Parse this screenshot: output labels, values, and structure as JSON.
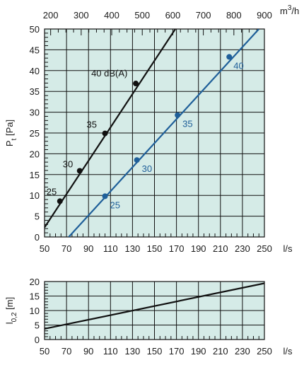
{
  "chart_data": [
    {
      "type": "line",
      "x_unit": "l/s",
      "x_ticks": [
        50,
        70,
        90,
        110,
        130,
        150,
        170,
        190,
        210,
        230,
        250
      ],
      "xlim": [
        50,
        250
      ],
      "x2_unit_base": "m",
      "x2_unit_sup": "3",
      "x2_unit_tail": "/h",
      "x2_ticks": [
        200,
        300,
        400,
        500,
        600,
        700,
        800,
        900
      ],
      "x2_per_x": 3.6,
      "ylabel_main": "P",
      "ylabel_sub": "t",
      "ylabel_tail": " [Pa]",
      "y_ticks": [
        0,
        5,
        10,
        15,
        20,
        25,
        30,
        35,
        40,
        45,
        50
      ],
      "ylim": [
        0,
        50
      ],
      "grid": true,
      "background": "#d5ebe7",
      "series": [
        {
          "color": "#111111",
          "line": {
            "x": [
              50,
              169
            ],
            "y": [
              2.3,
              50
            ]
          },
          "points": {
            "x": [
              64,
              82,
              105,
              133
            ],
            "y": [
              8.6,
              15.9,
              24.9,
              36.9
            ]
          },
          "labels": [
            "25",
            "30",
            "35",
            "40 dB(A)"
          ]
        },
        {
          "color": "#1f5f99",
          "line": {
            "x": [
              72,
              245
            ],
            "y": [
              0,
              50
            ]
          },
          "points": {
            "x": [
              105,
              134,
              171,
              218
            ],
            "y": [
              9.8,
              18.5,
              29.3,
              43.3
            ]
          },
          "labels": [
            "25",
            "30",
            "35",
            "40"
          ]
        }
      ]
    },
    {
      "type": "line",
      "x_unit": "l/s",
      "x_ticks": [
        50,
        70,
        90,
        110,
        130,
        150,
        170,
        190,
        210,
        230,
        250
      ],
      "xlim": [
        50,
        250
      ],
      "ylabel_main": "l",
      "ylabel_sub": "0,2",
      "ylabel_tail": " [m]",
      "y_ticks": [
        0,
        5,
        10,
        15,
        20
      ],
      "ylim": [
        0,
        20
      ],
      "grid": true,
      "background": "#d5ebe7",
      "series": [
        {
          "color": "#111111",
          "line": {
            "x": [
              50,
              250
            ],
            "y": [
              3.7,
              19.4
            ]
          }
        }
      ]
    }
  ]
}
